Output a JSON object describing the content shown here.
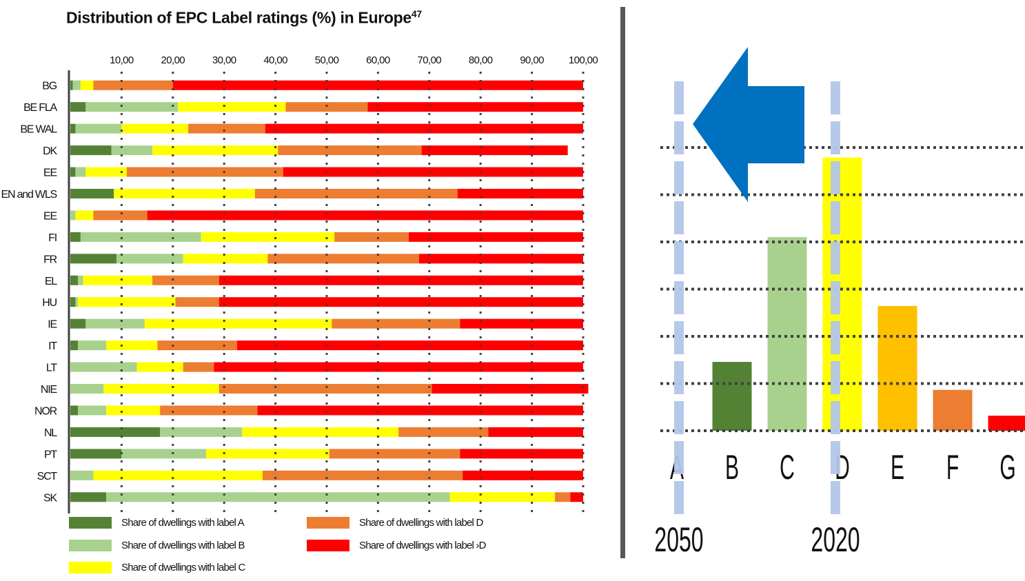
{
  "chart_data": [
    {
      "type": "bar",
      "orientation": "horizontal",
      "stacked": true,
      "title": "Distribution of EPC Label ratings (%) in Europe",
      "title_superscript": "47",
      "xlim": [
        0,
        100
      ],
      "x_ticks": [
        "10,00",
        "20,00",
        "30,00",
        "40,00",
        "50,00",
        "60,00",
        "70,00",
        "80,00",
        "90,00",
        "100,00"
      ],
      "x_tick_values": [
        10,
        20,
        30,
        40,
        50,
        60,
        70,
        80,
        90,
        100
      ],
      "grid": "vertical dotted",
      "legend_position": "bottom",
      "categories": [
        "BG",
        "BE FLA",
        "BE WAL",
        "DK",
        "EE",
        "EN and WLS",
        "EE",
        "FI",
        "FR",
        "EL",
        "HU",
        "IE",
        "IT",
        "LT",
        "NIE",
        "NOR",
        "NL",
        "PT",
        "SCT",
        "SK"
      ],
      "series": [
        {
          "name": "Share of dwellings with label A",
          "color": "#548235",
          "values": [
            0.5,
            3,
            1,
            8,
            1,
            8.5,
            0,
            2,
            9,
            1.5,
            1,
            3,
            1.5,
            0,
            0,
            1.5,
            17.5,
            10,
            0,
            7
          ]
        },
        {
          "name": "Share of dwellings with label B",
          "color": "#a9d18e",
          "values": [
            1.5,
            18,
            9,
            8,
            2,
            0,
            1,
            23.5,
            13,
            1,
            0.5,
            11.5,
            5.5,
            13,
            6.5,
            5.5,
            16,
            16.5,
            4.5,
            67
          ]
        },
        {
          "name": "Share of dwellings with label C",
          "color": "#ffff00",
          "values": [
            2.5,
            21,
            13,
            24.5,
            8,
            27.5,
            3.5,
            26,
            16.5,
            13.5,
            19,
            36.5,
            10,
            9,
            22.5,
            10.5,
            30.5,
            24,
            33,
            20.5
          ]
        },
        {
          "name": "Share of dwellings with label D",
          "color": "#ed7d31",
          "values": [
            15.5,
            16,
            15,
            28,
            30.5,
            39.5,
            10.5,
            14.5,
            29.5,
            13,
            8.5,
            25,
            15.5,
            6,
            41.5,
            19,
            17.5,
            25.5,
            39,
            3
          ]
        },
        {
          "name": "Share of dwellings with label >D",
          "color": "#ff0000",
          "values": [
            80,
            42,
            62,
            28.5,
            58.5,
            24.5,
            85,
            34,
            32,
            71,
            71,
            24,
            67.5,
            72,
            30.5,
            63.5,
            18.5,
            24,
            23.5,
            2.5
          ]
        }
      ],
      "legend_labels": [
        "Share of dwellings with label A",
        "Share of dwellings with label D",
        "Share of dwellings with label B",
        "Share of dwellings with label ›D",
        "Share of dwellings with label C"
      ]
    },
    {
      "type": "bar",
      "title": "",
      "categories": [
        "A",
        "B",
        "C",
        "D",
        "E",
        "F",
        "G"
      ],
      "values": [
        0,
        16,
        45,
        63.5,
        29,
        9.5,
        3.5
      ],
      "colors": [
        "#548235",
        "#548235",
        "#a9d18e",
        "#ffff00",
        "#ffc000",
        "#ed7d31",
        "#ff0000"
      ],
      "ylim": [
        0,
        70
      ],
      "grid": "horizontal dotted",
      "markers": [
        {
          "category": "A",
          "label": "2050",
          "color": "#b4c7e7"
        },
        {
          "category": "D",
          "label": "2020",
          "color": "#b4c7e7"
        }
      ],
      "arrow": {
        "direction": "left",
        "color": "#0070c0",
        "from": "D",
        "to": "A"
      }
    }
  ]
}
